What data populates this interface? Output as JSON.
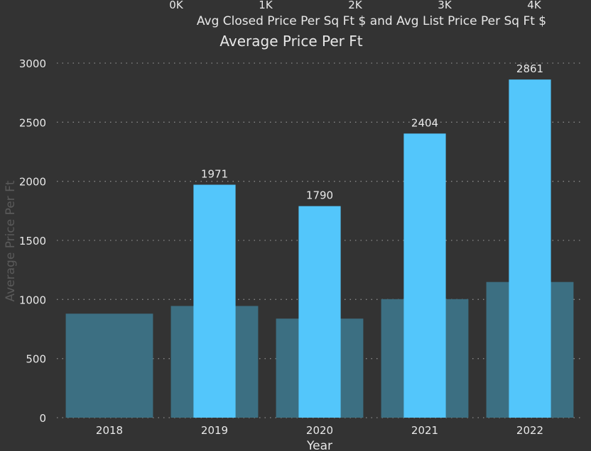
{
  "chart_data": {
    "type": "bar",
    "title": "Average Price Per Ft",
    "subtitle": "Avg Closed Price Per Sq Ft $ and Avg List Price Per Sq Ft $",
    "xlabel": "Year",
    "ylabel": "Average Price Per Ft",
    "categories": [
      "2018",
      "2019",
      "2020",
      "2021",
      "2022"
    ],
    "ylim": [
      0,
      3000
    ],
    "yticks": [
      "0",
      "500",
      "1000",
      "1500",
      "2000",
      "2500",
      "3000"
    ],
    "secondary_axis": {
      "position": "top",
      "range": [
        0,
        4000
      ],
      "ticks": [
        "0K",
        "1K",
        "2K",
        "3K",
        "4K"
      ]
    },
    "grid": true,
    "series": [
      {
        "role": "background-wide",
        "values": [
          880,
          945,
          838,
          1003,
          1148
        ],
        "color": "#3c6f82"
      },
      {
        "role": "foreground-narrow",
        "values": [
          null,
          1971,
          1790,
          2404,
          2861
        ],
        "data_labels": [
          "",
          "1971",
          "1790",
          "2404",
          "2861"
        ],
        "color": "#53c6fb"
      }
    ]
  },
  "colors": {
    "background": "#333333",
    "grid": "#8a8a8a",
    "text": "#e8e8e8"
  }
}
